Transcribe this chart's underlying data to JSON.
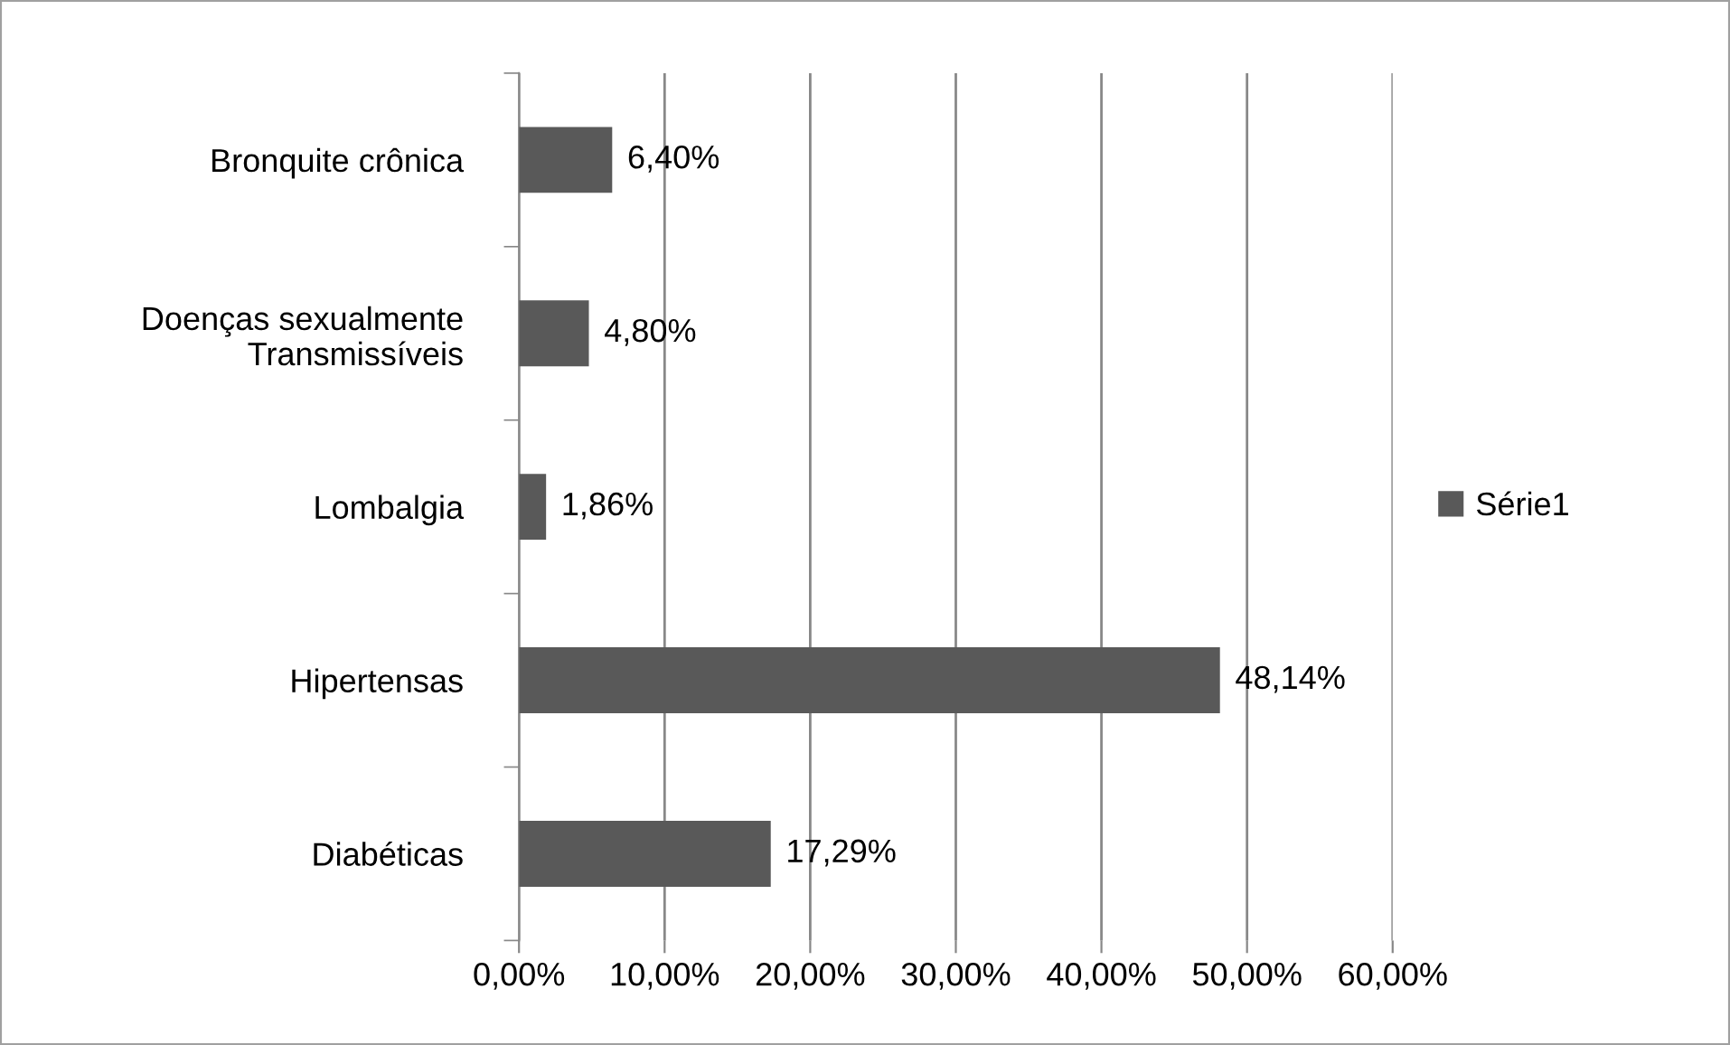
{
  "chart_data": {
    "type": "bar",
    "orientation": "horizontal",
    "categories": [
      "Bronquite crônica",
      "Doenças sexualmente\nTransmissíveis",
      "Lombalgia",
      "Hipertensas",
      "Diabéticas"
    ],
    "series": [
      {
        "name": "Série1",
        "color": "#595959",
        "values": [
          6.4,
          4.8,
          1.86,
          48.14,
          17.29
        ],
        "value_labels": [
          "6,40%",
          "4,80%",
          "1,86%",
          "48,14%",
          "17,29%"
        ]
      }
    ],
    "xlim": [
      0,
      60
    ],
    "xticks": [
      {
        "value": 0,
        "label": "0,00%"
      },
      {
        "value": 10,
        "label": "10,00%"
      },
      {
        "value": 20,
        "label": "20,00%"
      },
      {
        "value": 30,
        "label": "30,00%"
      },
      {
        "value": 40,
        "label": "40,00%"
      },
      {
        "value": 50,
        "label": "50,00%"
      },
      {
        "value": 60,
        "label": "60,00%"
      }
    ],
    "grid": "x",
    "legend": "right"
  }
}
